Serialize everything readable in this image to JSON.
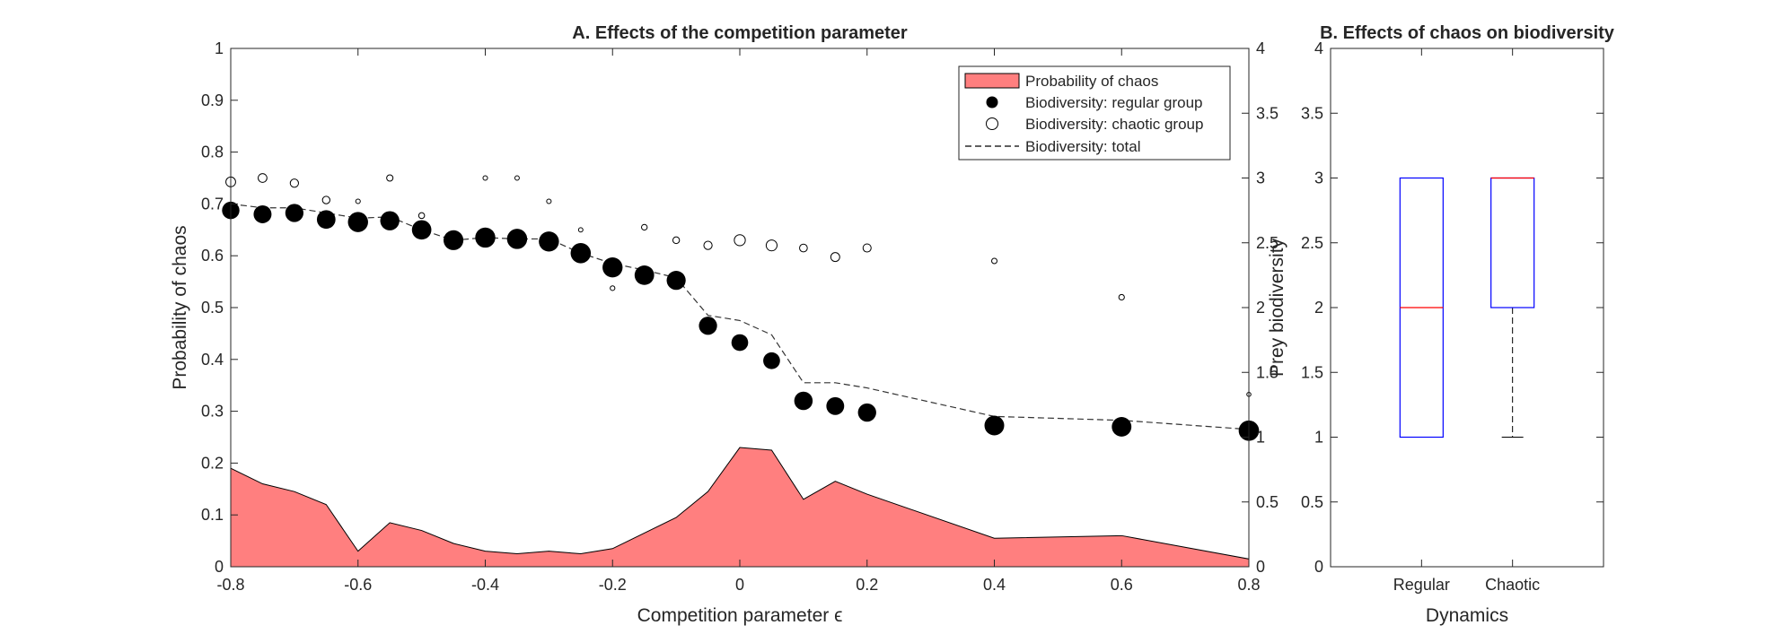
{
  "colors": {
    "area_fill": "#ff7f7f",
    "area_edge": "#000000",
    "markers": "#000000",
    "box_edge": "#0000ff",
    "median": "#ff0000",
    "whisker": "#000000",
    "axes": "#262626"
  },
  "chart_data": [
    {
      "type": "area+scatter+line",
      "title": "A. Effects of the competition parameter",
      "xlabel": "Competition parameter ϵ",
      "ylabel_left": "Probability of chaos",
      "ylabel_right": "Prey biodiversity",
      "xlim": [
        -0.8,
        0.8
      ],
      "ylim_left": [
        0,
        1
      ],
      "ylim_right": [
        0,
        4
      ],
      "xticks": [
        "-0.8",
        "-0.6",
        "-0.4",
        "-0.2",
        "0",
        "0.2",
        "0.4",
        "0.6",
        "0.8"
      ],
      "yticks_left": [
        "0",
        "0.1",
        "0.2",
        "0.3",
        "0.4",
        "0.5",
        "0.6",
        "0.7",
        "0.8",
        "0.9",
        "1"
      ],
      "yticks_right": [
        "0",
        "0.5",
        "1",
        "1.5",
        "2",
        "2.5",
        "3",
        "3.5",
        "4"
      ],
      "legend": {
        "placement": "top-right",
        "entries": [
          "Probability of chaos",
          "Biodiversity: regular group",
          "Biodiversity: chaotic group",
          "Biodiversity: total"
        ]
      },
      "x": [
        -0.8,
        -0.75,
        -0.7,
        -0.65,
        -0.6,
        -0.55,
        -0.5,
        -0.45,
        -0.4,
        -0.35,
        -0.3,
        -0.25,
        -0.2,
        -0.15,
        -0.1,
        -0.05,
        0,
        0.05,
        0.1,
        0.15,
        0.2,
        0.4,
        0.6,
        0.8
      ],
      "series": [
        {
          "name": "Probability of chaos",
          "kind": "area",
          "axis": "left",
          "values": [
            0.19,
            0.16,
            0.145,
            0.12,
            0.03,
            0.085,
            0.07,
            0.045,
            0.03,
            0.025,
            0.03,
            0.025,
            0.035,
            0.065,
            0.095,
            0.145,
            0.23,
            0.225,
            0.13,
            0.165,
            0.14,
            0.055,
            0.06,
            0.015
          ]
        },
        {
          "name": "Biodiversity: regular group",
          "kind": "scatter-filled",
          "axis": "right",
          "values": [
            2.75,
            2.72,
            2.73,
            2.68,
            2.66,
            2.67,
            2.6,
            2.52,
            2.54,
            2.53,
            2.51,
            2.42,
            2.31,
            2.25,
            2.21,
            1.86,
            1.73,
            1.59,
            1.28,
            1.24,
            1.19,
            1.09,
            1.08,
            1.05
          ],
          "relative_size": [
            0.81,
            0.84,
            0.855,
            0.88,
            0.97,
            0.915,
            0.93,
            0.955,
            0.97,
            0.975,
            0.97,
            0.975,
            0.965,
            0.935,
            0.905,
            0.855,
            0.77,
            0.775,
            0.87,
            0.835,
            0.86,
            0.945,
            0.94,
            0.985
          ]
        },
        {
          "name": "Biodiversity: chaotic group",
          "kind": "scatter-open",
          "axis": "right",
          "values": [
            2.97,
            3.0,
            2.96,
            2.83,
            2.82,
            3.0,
            2.71,
            null,
            3.0,
            3.0,
            2.82,
            2.6,
            2.15,
            2.62,
            2.52,
            2.48,
            2.52,
            2.48,
            2.46,
            2.39,
            2.46,
            2.36,
            2.08,
            1.33
          ],
          "relative_size": [
            0.19,
            0.16,
            0.145,
            0.12,
            0.03,
            0.085,
            0.07,
            0.045,
            0.03,
            0.025,
            0.03,
            0.025,
            0.035,
            0.065,
            0.095,
            0.145,
            0.23,
            0.225,
            0.13,
            0.165,
            0.14,
            0.055,
            0.06,
            0.015
          ]
        },
        {
          "name": "Biodiversity: total",
          "kind": "line-dashed",
          "axis": "right",
          "values": [
            2.8,
            2.77,
            2.77,
            2.73,
            2.69,
            2.7,
            2.6,
            2.52,
            2.54,
            2.53,
            2.53,
            2.42,
            2.34,
            2.29,
            2.23,
            1.94,
            1.9,
            1.79,
            1.42,
            1.42,
            1.38,
            1.16,
            1.13,
            1.06
          ]
        }
      ]
    },
    {
      "type": "box",
      "title": "B. Effects of chaos on biodiversity",
      "xlabel": "Dynamics",
      "ylim": [
        0,
        4
      ],
      "yticks": [
        "0",
        "0.5",
        "1",
        "1.5",
        "2",
        "2.5",
        "3",
        "3.5",
        "4"
      ],
      "categories": [
        "Regular",
        "Chaotic"
      ],
      "boxes": [
        {
          "min": 1,
          "q1": 1,
          "median": 2,
          "q3": 3,
          "max": 3
        },
        {
          "min": 1,
          "q1": 2,
          "median": 3,
          "q3": 3,
          "max": 3
        }
      ]
    }
  ]
}
